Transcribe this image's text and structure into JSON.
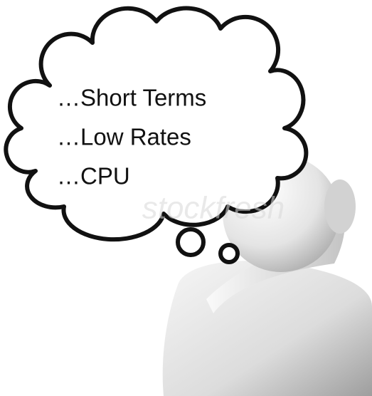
{
  "thought": {
    "lines": [
      "…Short Terms",
      "…Low Rates",
      "…CPU"
    ]
  },
  "watermark": "stockfresh"
}
